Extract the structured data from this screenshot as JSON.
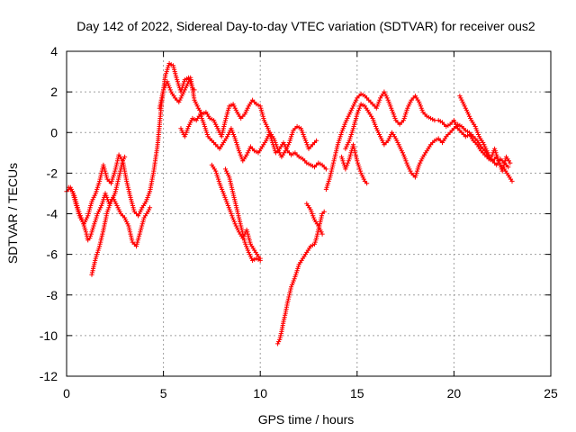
{
  "chart_data": {
    "type": "scatter",
    "title": "Day 142 of 2022, Sidereal Day-to-day VTEC variation (SDTVAR) for receiver ous2",
    "xlabel": "GPS time / hours",
    "ylabel": "SDTVAR / TECUs",
    "xlim": [
      0,
      25
    ],
    "ylim": [
      -12,
      4
    ],
    "xticks": [
      0,
      5,
      10,
      15,
      20,
      25
    ],
    "yticks": [
      4,
      2,
      0,
      -2,
      -4,
      -6,
      -8,
      -10,
      -12
    ],
    "grid": true,
    "marker": "+",
    "color": "#ff0000",
    "series": [
      {
        "name": "seg1",
        "x": [
          0.0,
          0.2,
          0.4,
          0.6,
          0.8,
          1.0,
          1.1,
          1.2,
          1.4,
          1.6,
          1.8,
          2.0,
          2.2,
          2.4,
          2.6,
          2.8,
          3.0,
          3.2,
          3.4,
          3.6,
          3.8,
          4.0,
          4.2,
          4.3
        ],
        "y": [
          -2.9,
          -2.7,
          -3.1,
          -3.8,
          -4.3,
          -4.9,
          -5.3,
          -5.2,
          -4.6,
          -4.0,
          -3.6,
          -3.0,
          -3.5,
          -3.2,
          -3.6,
          -4.0,
          -4.2,
          -4.6,
          -5.4,
          -5.6,
          -4.9,
          -4.2,
          -3.9,
          -3.7
        ]
      },
      {
        "name": "seg2",
        "x": [
          0.1,
          0.3,
          0.5,
          0.7,
          0.9,
          1.1,
          1.3,
          1.5,
          1.7,
          1.9,
          2.1,
          2.3,
          2.5,
          2.7,
          2.9,
          3.1,
          3.3,
          3.5,
          3.7,
          3.9,
          4.1,
          4.3,
          4.5,
          4.7,
          4.9,
          5.1,
          5.3,
          5.5,
          5.7,
          5.9,
          6.1,
          6.3,
          6.5,
          6.6
        ],
        "y": [
          -2.7,
          -2.9,
          -3.6,
          -4.2,
          -4.5,
          -4.1,
          -3.4,
          -3.0,
          -2.4,
          -1.6,
          -2.3,
          -2.5,
          -1.9,
          -1.1,
          -1.4,
          -2.4,
          -3.2,
          -3.9,
          -4.1,
          -3.7,
          -3.4,
          -2.9,
          -1.9,
          -0.6,
          1.4,
          2.8,
          3.4,
          3.3,
          2.6,
          2.0,
          2.6,
          2.7,
          2.2,
          2.1
        ]
      },
      {
        "name": "seg3",
        "x": [
          1.3,
          1.5,
          1.7,
          1.9,
          2.1,
          2.3,
          2.5,
          2.7,
          2.9,
          3.0
        ],
        "y": [
          -7.0,
          -6.2,
          -5.6,
          -4.8,
          -3.9,
          -3.4,
          -3.0,
          -2.2,
          -1.4,
          -1.2
        ]
      },
      {
        "name": "seg4",
        "x": [
          4.8,
          5.0,
          5.2,
          5.4,
          5.6,
          5.8,
          6.0,
          6.2,
          6.4,
          6.6,
          6.8,
          7.0,
          7.2,
          7.4,
          7.6,
          7.8,
          8.0,
          8.2,
          8.4,
          8.6,
          8.8,
          9.0,
          9.2,
          9.4,
          9.6,
          9.8,
          10.0,
          10.2,
          10.4,
          10.6,
          10.8,
          11.0,
          11.2,
          11.4,
          11.6,
          11.8,
          12.0,
          12.2,
          12.4,
          12.6,
          12.8,
          13.0,
          13.2,
          13.4
        ],
        "y": [
          1.2,
          2.1,
          2.5,
          2.0,
          1.7,
          1.5,
          1.9,
          2.3,
          2.7,
          1.6,
          1.2,
          0.9,
          1.0,
          0.7,
          0.6,
          0.2,
          -0.2,
          0.6,
          1.3,
          1.4,
          1.0,
          0.7,
          0.9,
          1.3,
          1.6,
          1.4,
          1.3,
          0.6,
          0.2,
          -0.4,
          -1.0,
          -0.8,
          -0.5,
          -0.9,
          -1.1,
          -1.0,
          -1.2,
          -1.3,
          -1.5,
          -1.6,
          -1.7,
          -1.5,
          -1.6,
          -1.8
        ]
      },
      {
        "name": "seg5",
        "x": [
          5.9,
          6.1,
          6.3,
          6.5,
          6.7,
          6.9,
          7.1,
          7.3,
          7.5,
          7.7,
          7.9,
          8.1,
          8.3,
          8.5,
          8.7,
          8.9,
          9.1,
          9.3,
          9.5,
          9.7,
          9.9,
          10.1,
          10.3,
          10.5,
          10.7,
          10.9,
          11.1,
          11.3,
          11.5,
          11.7,
          11.9,
          12.1,
          12.3,
          12.5,
          12.7,
          12.9
        ],
        "y": [
          0.2,
          -0.2,
          0.3,
          0.7,
          0.6,
          0.9,
          0.4,
          -0.2,
          -0.4,
          -0.6,
          -0.8,
          -0.5,
          -0.2,
          0.2,
          -0.3,
          -0.9,
          -1.4,
          -1.1,
          -0.7,
          -0.9,
          -1.0,
          -0.7,
          -0.4,
          0.0,
          -0.3,
          -0.8,
          -1.2,
          -0.9,
          -0.5,
          0.1,
          0.3,
          0.2,
          -0.3,
          -0.8,
          -0.6,
          -0.4
        ]
      },
      {
        "name": "seg6",
        "x": [
          7.5,
          7.7,
          7.9,
          8.1,
          8.3,
          8.5,
          8.7,
          8.9,
          9.1,
          9.3,
          9.5,
          9.7,
          9.9,
          10.0
        ],
        "y": [
          -1.6,
          -1.9,
          -2.5,
          -3.0,
          -3.5,
          -4.0,
          -4.5,
          -4.9,
          -5.2,
          -4.8,
          -5.5,
          -5.8,
          -6.1,
          -6.2
        ]
      },
      {
        "name": "seg7",
        "x": [
          8.2,
          8.4,
          8.6,
          8.8,
          9.0,
          9.2,
          9.4,
          9.6,
          9.8,
          10.0
        ],
        "y": [
          -1.8,
          -2.2,
          -3.0,
          -3.8,
          -4.6,
          -5.4,
          -5.9,
          -6.3,
          -6.2,
          -6.3
        ]
      },
      {
        "name": "seg8",
        "x": [
          10.9,
          11.0,
          11.1,
          11.2,
          11.3,
          11.4,
          11.5,
          11.6,
          11.8,
          12.0,
          12.2,
          12.4,
          12.6,
          12.8,
          12.9,
          13.0,
          13.1,
          13.2,
          13.3
        ],
        "y": [
          -10.4,
          -10.2,
          -9.8,
          -9.3,
          -8.9,
          -8.4,
          -8.0,
          -7.6,
          -7.1,
          -6.5,
          -6.2,
          -5.9,
          -5.6,
          -5.5,
          -5.2,
          -4.8,
          -4.4,
          -4.0,
          -3.9
        ]
      },
      {
        "name": "seg9",
        "x": [
          12.4,
          12.6,
          12.8,
          13.0,
          13.2
        ],
        "y": [
          -3.5,
          -3.8,
          -4.3,
          -4.6,
          -5.0
        ]
      },
      {
        "name": "seg10",
        "x": [
          13.4,
          13.6,
          13.8,
          14.0,
          14.2,
          14.4,
          14.6,
          14.8,
          15.0,
          15.2,
          15.4,
          15.6,
          15.8,
          16.0,
          16.2,
          16.4,
          16.6,
          16.8,
          17.0,
          17.2,
          17.4,
          17.6,
          17.8,
          18.0,
          18.2,
          18.4,
          18.6,
          18.8,
          19.0,
          19.2,
          19.4,
          19.6,
          19.8,
          20.0,
          20.2,
          20.4,
          20.6,
          20.8,
          21.0,
          21.2,
          21.4,
          21.6,
          21.8,
          22.0,
          22.2,
          22.4,
          22.6,
          22.8,
          23.0
        ],
        "y": [
          -2.8,
          -2.2,
          -1.4,
          -0.6,
          0.0,
          0.5,
          0.9,
          1.3,
          1.7,
          1.9,
          1.8,
          1.6,
          1.4,
          1.2,
          1.7,
          2.0,
          1.6,
          1.1,
          0.6,
          0.4,
          0.6,
          1.2,
          1.6,
          1.8,
          1.5,
          1.0,
          0.8,
          0.7,
          0.6,
          0.6,
          0.5,
          0.3,
          0.4,
          0.6,
          0.2,
          0.0,
          -0.2,
          -0.1,
          -0.4,
          -0.6,
          -0.9,
          -1.1,
          -1.3,
          -1.4,
          -1.2,
          -1.6,
          -1.8,
          -2.1,
          -2.4
        ]
      },
      {
        "name": "seg11",
        "x": [
          14.4,
          14.6,
          14.8,
          15.0,
          15.2,
          15.4,
          15.6,
          15.8,
          16.0,
          16.2,
          16.4,
          16.6,
          16.8,
          17.0,
          17.2,
          17.4,
          17.6,
          17.8,
          18.0,
          18.2,
          18.4,
          18.6,
          18.8,
          19.0,
          19.2,
          19.4,
          19.6,
          19.8,
          20.0,
          20.2,
          20.4,
          20.6,
          20.8,
          21.0,
          21.2,
          21.4,
          21.6,
          21.8,
          22.0,
          22.2,
          22.4,
          22.6,
          22.8
        ],
        "y": [
          -0.8,
          -0.4,
          0.2,
          0.9,
          1.4,
          1.3,
          1.0,
          0.7,
          0.2,
          -0.2,
          -0.6,
          -0.4,
          0.0,
          -0.3,
          -0.7,
          -1.1,
          -1.6,
          -2.0,
          -2.2,
          -1.6,
          -1.2,
          -0.9,
          -0.6,
          -0.4,
          -0.3,
          -0.5,
          -0.2,
          0.0,
          0.2,
          0.4,
          0.3,
          0.1,
          0.0,
          -0.2,
          -0.4,
          -0.7,
          -0.9,
          -1.2,
          -1.4,
          -1.6,
          -1.3,
          -1.5,
          -1.7
        ]
      },
      {
        "name": "seg12",
        "x": [
          14.2,
          14.4,
          14.6,
          14.8,
          15.0,
          15.2,
          15.4,
          15.5
        ],
        "y": [
          -1.2,
          -1.8,
          -1.3,
          -0.6,
          -1.4,
          -2.0,
          -2.4,
          -2.5
        ]
      },
      {
        "name": "seg13",
        "x": [
          20.3,
          20.5,
          20.7,
          20.9,
          21.1,
          21.3,
          21.5,
          21.7,
          21.9,
          22.1,
          22.3,
          22.5,
          22.7,
          22.9
        ],
        "y": [
          1.8,
          1.4,
          1.0,
          0.6,
          0.3,
          -0.2,
          -0.5,
          -0.9,
          -1.3,
          -0.8,
          -1.4,
          -1.9,
          -1.2,
          -1.5
        ]
      }
    ]
  }
}
